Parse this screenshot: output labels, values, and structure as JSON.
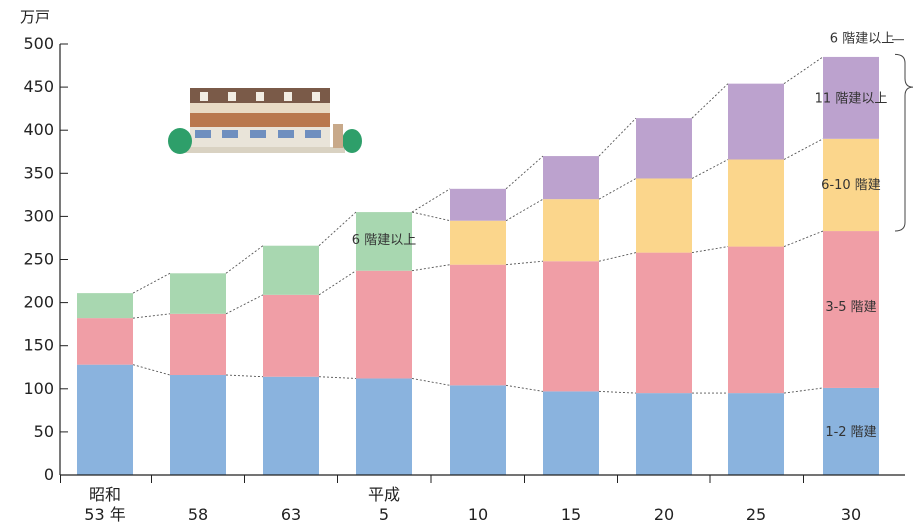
{
  "chart_data": {
    "type": "bar",
    "stacked": true,
    "ylabel": "万戸",
    "ylim": [
      0,
      500
    ],
    "yticks": [
      0,
      50,
      100,
      150,
      200,
      250,
      300,
      350,
      400,
      450,
      500
    ],
    "categories": [
      "昭和 53 年",
      "58",
      "63",
      "平成 5",
      "10",
      "15",
      "20",
      "25",
      "30"
    ],
    "era_labels": {
      "first": "昭和",
      "fourth": "平成"
    },
    "x_tick_labels": [
      "53 年",
      "58",
      "63",
      "5",
      "10",
      "15",
      "20",
      "25",
      "30"
    ],
    "series": [
      {
        "name": "1-2 階建",
        "color": "#8ab3de",
        "values": [
          128,
          116,
          114,
          112,
          104,
          97,
          95,
          95,
          101
        ]
      },
      {
        "name": "3-5 階建",
        "color": "#f09ea6",
        "values": [
          54,
          71,
          95,
          125,
          140,
          151,
          163,
          170,
          182
        ]
      },
      {
        "name": "6 階建以上",
        "color": "#a8d7b0",
        "values": [
          29,
          47,
          57,
          68,
          null,
          null,
          null,
          null,
          null
        ]
      },
      {
        "name": "6-10 階建",
        "color": "#fbd68c",
        "values": [
          null,
          null,
          null,
          null,
          51,
          72,
          86,
          101,
          107
        ]
      },
      {
        "name": "11 階建以上",
        "color": "#bca2ce",
        "values": [
          null,
          null,
          null,
          null,
          37,
          50,
          70,
          88,
          95
        ]
      }
    ],
    "annotations": {
      "six_plus_in_bar4": "6 階建以上",
      "bracket_label": "6 階建以上",
      "last_bar_labels": [
        "11 階建以上",
        "6-10 階建",
        "3-5 階建",
        "1-2 階建"
      ]
    },
    "grid": false,
    "legend": "none"
  }
}
